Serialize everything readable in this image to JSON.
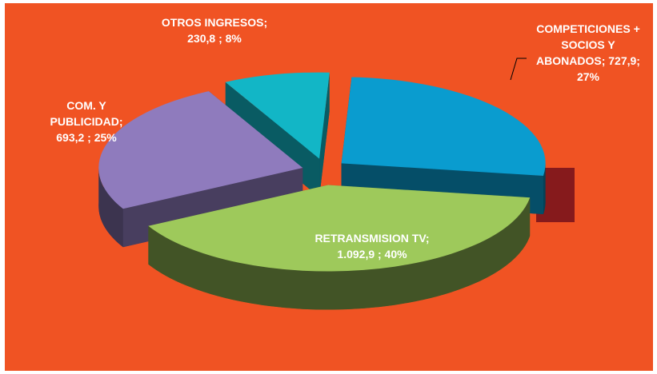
{
  "chart_data": {
    "type": "pie",
    "data_labels": [
      "COMPETICIONES + SOCIOS Y ABONADOS; 727,9; 27%",
      "RETRANSMISION TV; 1.092,9 ; 40%",
      "COM. Y PUBLICIDAD; 693,2 ; 25%",
      "OTROS INGRESOS; 230,8 ; 8%"
    ],
    "values": [
      727.9,
      1092.9,
      693.2,
      230.8
    ],
    "colors": [
      "#0a9ccf",
      "#9ec95b",
      "#8f7bbd",
      "#12b6c6"
    ]
  }
}
